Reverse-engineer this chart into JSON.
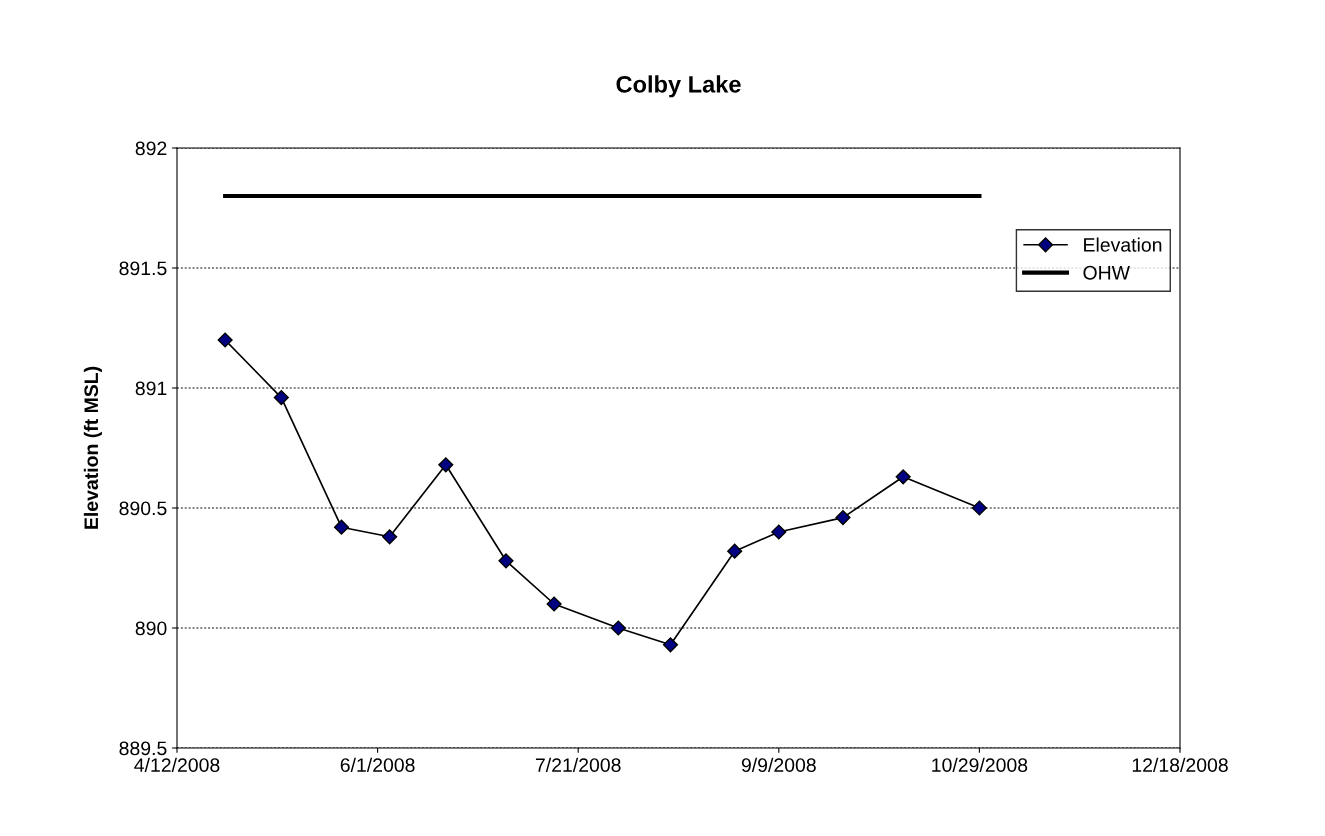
{
  "chart_data": {
    "type": "line",
    "title": "Colby Lake",
    "ylabel": "Elevation (ft MSL)",
    "series": [
      {
        "name": "Elevation",
        "color": "#000080",
        "marker": "diamond",
        "x": [
          "2008-04-24",
          "2008-05-08",
          "2008-05-23",
          "2008-06-04",
          "2008-06-18",
          "2008-07-03",
          "2008-07-15",
          "2008-07-31",
          "2008-08-13",
          "2008-08-29",
          "2008-09-09",
          "2008-09-25",
          "2008-10-10",
          "2008-10-29"
        ],
        "values": [
          891.2,
          890.96,
          890.42,
          890.38,
          890.68,
          890.28,
          890.1,
          890.0,
          889.93,
          890.32,
          890.4,
          890.46,
          890.63,
          890.5
        ]
      },
      {
        "name": "OHW",
        "color": "#000000",
        "marker": "none",
        "x": [
          "2008-04-24",
          "2008-10-29"
        ],
        "values": [
          891.8,
          891.8
        ]
      }
    ],
    "xlim": [
      "2008-04-12",
      "2008-12-18"
    ],
    "xticks": [
      {
        "value": "2008-04-12",
        "label": "4/12/2008"
      },
      {
        "value": "2008-06-01",
        "label": "6/1/2008"
      },
      {
        "value": "2008-07-21",
        "label": "7/21/2008"
      },
      {
        "value": "2008-09-09",
        "label": "9/9/2008"
      },
      {
        "value": "2008-10-29",
        "label": "10/29/2008"
      },
      {
        "value": "2008-12-18",
        "label": "12/18/2008"
      }
    ],
    "ylim": [
      889.5,
      892
    ],
    "yticks": [
      889.5,
      890,
      890.5,
      891,
      891.5,
      892
    ],
    "grid": "y",
    "legend": "top right"
  }
}
